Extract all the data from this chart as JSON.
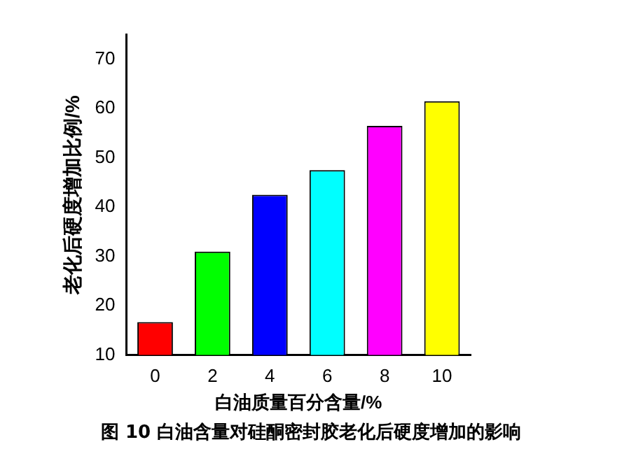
{
  "chart_data": {
    "type": "bar",
    "title": "图 10  白油含量对硅酮密封胶老化后硬度增加的影响",
    "xlabel": "白油质量百分含量/%",
    "ylabel": "老化后硬度增加比例/%",
    "categories": [
      "0",
      "2",
      "4",
      "6",
      "8",
      "10"
    ],
    "values": [
      16.7,
      31,
      42.5,
      47.5,
      56.5,
      61.5
    ],
    "colors": [
      "#ff0000",
      "#00ff00",
      "#0000ff",
      "#00ffff",
      "#ff00ff",
      "#ffff00"
    ],
    "ylim": [
      10,
      75
    ],
    "yticks": [
      10,
      20,
      30,
      40,
      50,
      60,
      70
    ],
    "grid": false,
    "legend": false
  }
}
